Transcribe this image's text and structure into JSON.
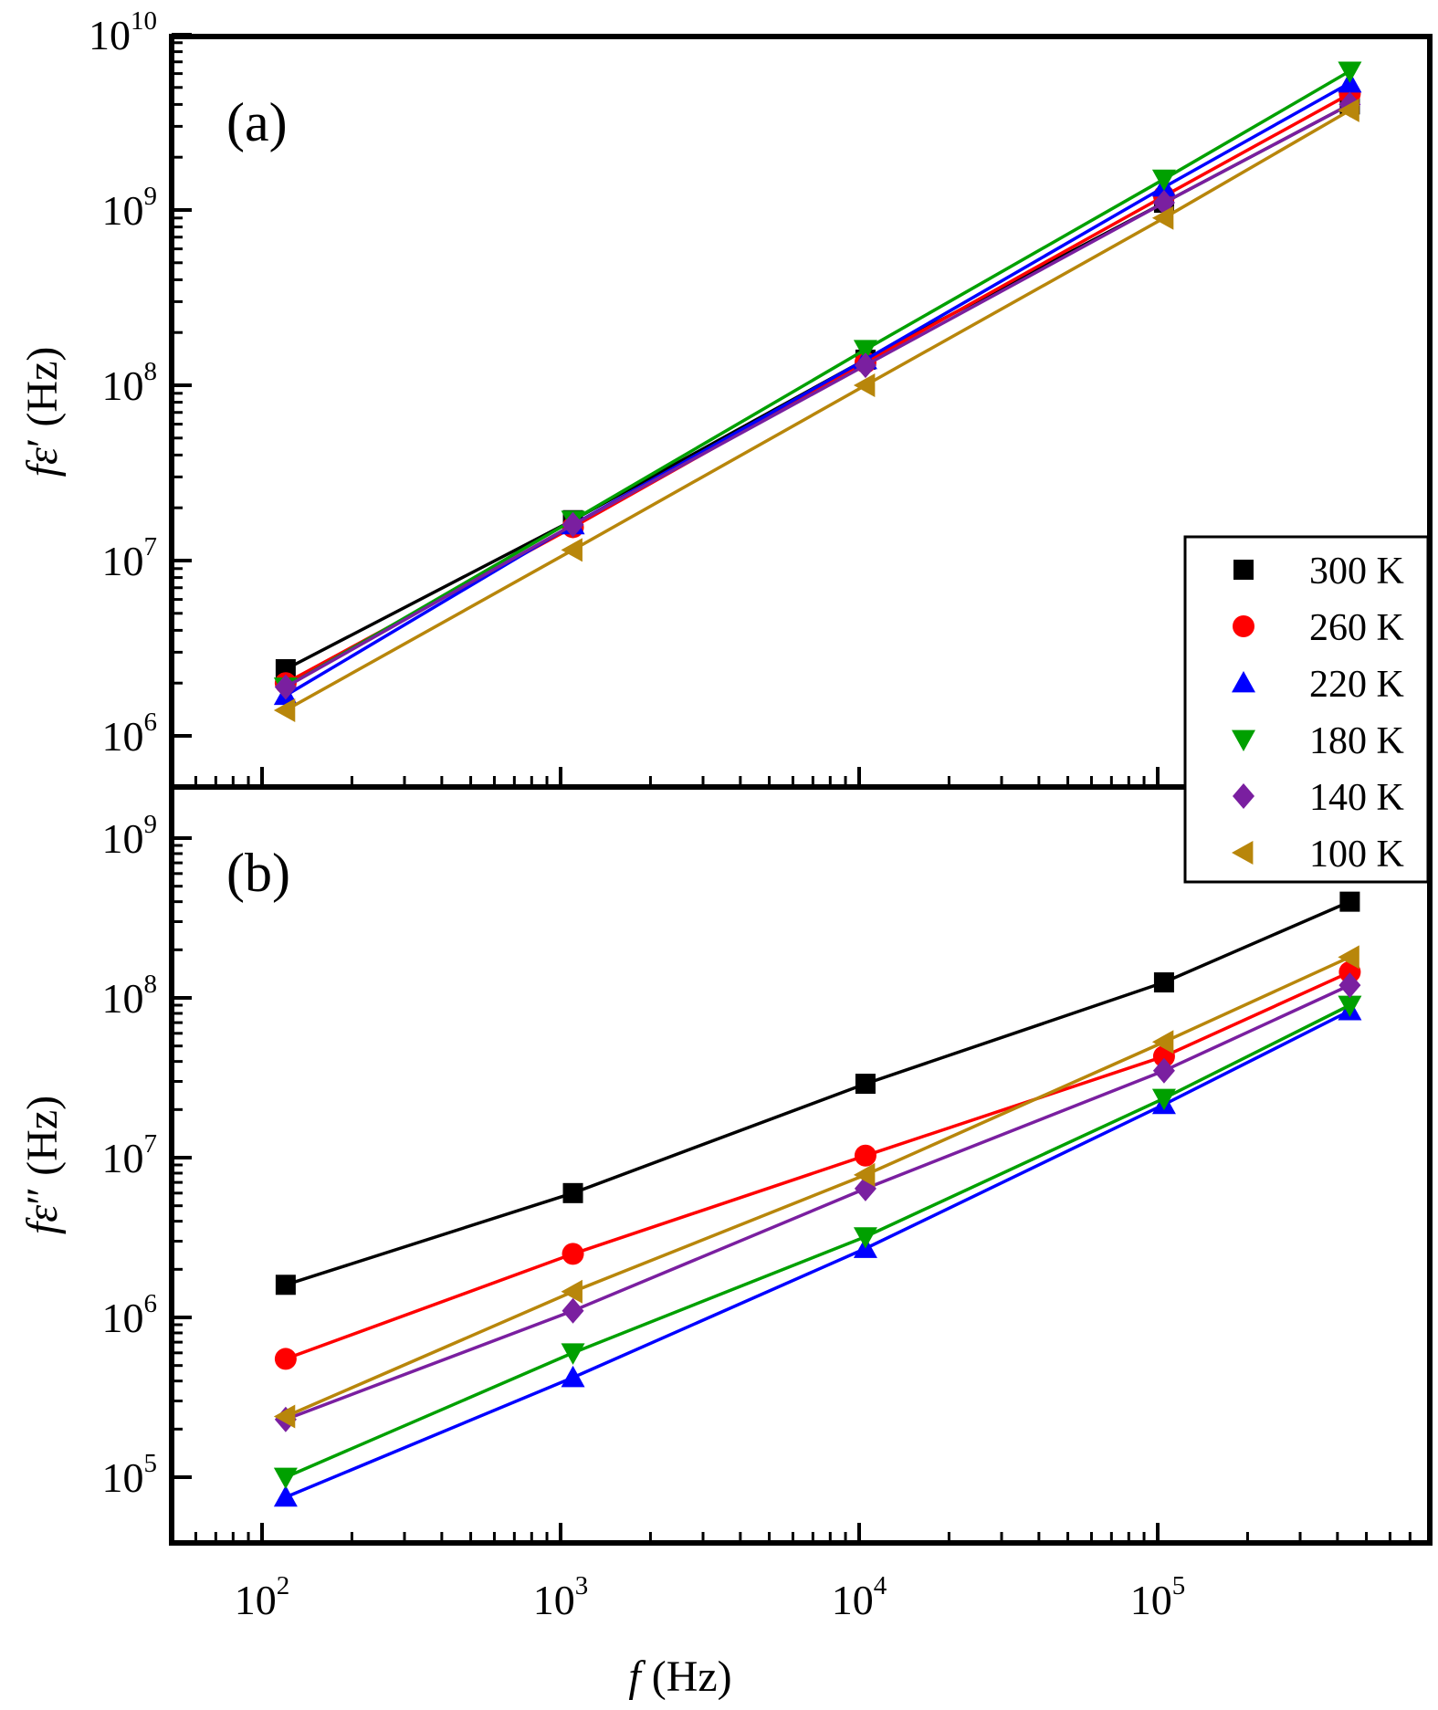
{
  "chart_data": {
    "type": "line",
    "x_scale": "log",
    "y_scale": "log",
    "x_label": {
      "sym": "f",
      "unit": "(Hz)"
    },
    "x_ticks": [
      {
        "base": "10",
        "exp": "2",
        "value": 100
      },
      {
        "base": "10",
        "exp": "3",
        "value": 1000
      },
      {
        "base": "10",
        "exp": "4",
        "value": 10000
      },
      {
        "base": "10",
        "exp": "5",
        "value": 100000
      }
    ],
    "series_styles": [
      {
        "name": "300 K",
        "color": "#000000",
        "marker": "square"
      },
      {
        "name": "260 K",
        "color": "#ff0000",
        "marker": "circle"
      },
      {
        "name": "220 K",
        "color": "#0000ff",
        "marker": "triangle-up"
      },
      {
        "name": "180 K",
        "color": "#00a000",
        "marker": "triangle-down"
      },
      {
        "name": "140 K",
        "color": "#7a1fa0",
        "marker": "diamond"
      },
      {
        "name": "100 K",
        "color": "#b8860b",
        "marker": "triangle-left"
      }
    ],
    "legend_position": "right, straddling the two panels",
    "panels": [
      {
        "label": "(a)",
        "y_label": {
          "sym": "f",
          "eps": "ε",
          "prime": "′",
          "unit": "(Hz)"
        },
        "y_ticks": [
          {
            "base": "10",
            "exp": "6",
            "value": 1000000.0
          },
          {
            "base": "10",
            "exp": "7",
            "value": 10000000.0
          },
          {
            "base": "10",
            "exp": "8",
            "value": 100000000.0
          },
          {
            "base": "10",
            "exp": "9",
            "value": 1000000000.0
          },
          {
            "base": "10",
            "exp": "10",
            "value": 10000000000.0
          }
        ],
        "x": [
          120,
          1100,
          10500,
          105000,
          440000
        ],
        "series": [
          {
            "name": "300 K",
            "values": [
              2400000.0,
              17000000.0,
              140000000.0,
              1100000000.0,
              4000000000.0
            ]
          },
          {
            "name": "260 K",
            "values": [
              2000000.0,
              15500000.0,
              135000000.0,
              1200000000.0,
              4600000000.0
            ]
          },
          {
            "name": "220 K",
            "values": [
              1700000.0,
              16000000.0,
              140000000.0,
              1350000000.0,
              5300000000.0
            ]
          },
          {
            "name": "180 K",
            "values": [
              1900000.0,
              17000000.0,
              160000000.0,
              1500000000.0,
              6200000000.0
            ]
          },
          {
            "name": "140 K",
            "values": [
              1900000.0,
              16000000.0,
              130000000.0,
              1100000000.0,
              4000000000.0
            ]
          },
          {
            "name": "100 K",
            "values": [
              1400000.0,
              11500000.0,
              100000000.0,
              900000000.0,
              3700000000.0
            ]
          }
        ]
      },
      {
        "label": "(b)",
        "y_label": {
          "sym": "f",
          "eps": "ε",
          "prime": "″",
          "unit": "(Hz)"
        },
        "y_ticks": [
          {
            "base": "10",
            "exp": "5",
            "value": 100000.0
          },
          {
            "base": "10",
            "exp": "6",
            "value": 1000000.0
          },
          {
            "base": "10",
            "exp": "7",
            "value": 10000000.0
          },
          {
            "base": "10",
            "exp": "8",
            "value": 100000000.0
          },
          {
            "base": "10",
            "exp": "9",
            "value": 1000000000.0
          }
        ],
        "x": [
          120,
          1100,
          10500,
          105000,
          440000
        ],
        "series": [
          {
            "name": "300 K",
            "values": [
              1600000.0,
              6000000.0,
              29000000.0,
              125000000.0,
              400000000.0
            ]
          },
          {
            "name": "260 K",
            "values": [
              550000.0,
              2500000.0,
              10300000.0,
              43000000.0,
              145000000.0
            ]
          },
          {
            "name": "220 K",
            "values": [
              75000.0,
              420000.0,
              2700000.0,
              21500000.0,
              83000000.0
            ]
          },
          {
            "name": "180 K",
            "values": [
              100000.0,
              600000.0,
              3200000.0,
              23500000.0,
              90000000.0
            ]
          },
          {
            "name": "140 K",
            "values": [
              230000.0,
              1100000.0,
              6400000.0,
              35000000.0,
              120000000.0
            ]
          },
          {
            "name": "100 K",
            "values": [
              240000.0,
              1450000.0,
              7800000.0,
              53000000.0,
              180000000.0
            ]
          }
        ]
      }
    ]
  }
}
